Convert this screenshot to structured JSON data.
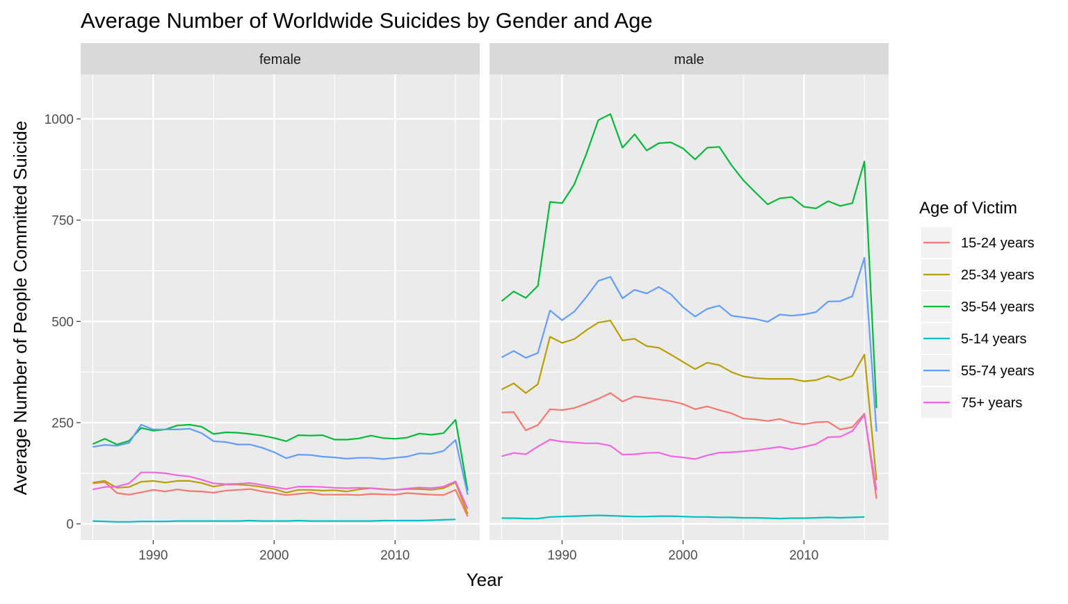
{
  "chart_data": {
    "type": "line",
    "title": "Average Number of Worldwide Suicides by Gender and Age",
    "xlabel": "Year",
    "ylabel": "Average Number of People Committed Suicide",
    "xlim": [
      1984,
      2017
    ],
    "ylim": [
      -40,
      1110
    ],
    "x_ticks": [
      1990,
      2000,
      2010
    ],
    "y_ticks": [
      0,
      250,
      500,
      750,
      1000
    ],
    "grid": true,
    "legend": {
      "title": "Age of Victim",
      "position": "right"
    },
    "x": [
      1985,
      1986,
      1987,
      1988,
      1989,
      1990,
      1991,
      1992,
      1993,
      1994,
      1995,
      1996,
      1997,
      1998,
      1999,
      2000,
      2001,
      2002,
      2003,
      2004,
      2005,
      2006,
      2007,
      2008,
      2009,
      2010,
      2011,
      2012,
      2013,
      2014,
      2015,
      2016
    ],
    "panels": [
      {
        "label": "female",
        "series": [
          {
            "name": "15-24 years",
            "color": "#F8766D",
            "values": [
              100,
              103,
              76,
              72,
              78,
              84,
              80,
              85,
              81,
              80,
              77,
              82,
              84,
              86,
              80,
              76,
              71,
              74,
              77,
              72,
              72,
              72,
              71,
              74,
              73,
              72,
              76,
              74,
              72,
              71,
              84,
              18
            ]
          },
          {
            "name": "25-34 years",
            "color": "#B79F00",
            "values": [
              102,
              106,
              89,
              91,
              104,
              106,
              102,
              106,
              106,
              101,
              92,
              97,
              97,
              95,
              91,
              86,
              77,
              84,
              84,
              82,
              83,
              80,
              85,
              88,
              86,
              84,
              86,
              86,
              84,
              88,
              102,
              25
            ]
          },
          {
            "name": "35-54 years",
            "color": "#00BA38",
            "values": [
              197,
              210,
              196,
              205,
              237,
              230,
              233,
              243,
              245,
              240,
              222,
              226,
              225,
              222,
              218,
              212,
              204,
              219,
              218,
              219,
              208,
              208,
              211,
              218,
              212,
              210,
              213,
              223,
              220,
              224,
              257,
              82
            ]
          },
          {
            "name": "5-14 years",
            "color": "#00BFC4",
            "values": [
              7,
              6,
              5,
              5,
              6,
              6,
              6,
              7,
              7,
              7,
              7,
              7,
              7,
              8,
              7,
              7,
              7,
              8,
              7,
              7,
              7,
              7,
              7,
              7,
              8,
              8,
              8,
              8,
              9,
              10,
              11,
              null
            ]
          },
          {
            "name": "55-74 years",
            "color": "#619CFF",
            "values": [
              190,
              195,
              193,
              200,
              245,
              233,
              233,
              233,
              235,
              224,
              204,
              202,
              196,
              196,
              188,
              177,
              162,
              171,
              170,
              166,
              164,
              161,
              163,
              163,
              160,
              163,
              166,
              174,
              173,
              180,
              207,
              72
            ]
          },
          {
            "name": "75+ years",
            "color": "#F564E3",
            "values": [
              85,
              91,
              92,
              100,
              127,
              127,
              125,
              120,
              117,
              109,
              100,
              98,
              99,
              101,
              96,
              91,
              86,
              92,
              92,
              91,
              89,
              88,
              89,
              88,
              85,
              84,
              87,
              90,
              88,
              92,
              105,
              37
            ]
          }
        ]
      },
      {
        "label": "male",
        "series": [
          {
            "name": "15-24 years",
            "color": "#F8766D",
            "values": [
              275,
              276,
              231,
              244,
              283,
              281,
              286,
              297,
              309,
              323,
              302,
              315,
              311,
              307,
              303,
              296,
              283,
              290,
              281,
              273,
              260,
              258,
              254,
              259,
              250,
              246,
              251,
              252,
              233,
              239,
              272,
              62
            ]
          },
          {
            "name": "25-34 years",
            "color": "#B79F00",
            "values": [
              332,
              347,
              323,
              345,
              462,
              447,
              456,
              478,
              497,
              502,
              453,
              457,
              439,
              435,
              418,
              400,
              382,
              398,
              392,
              375,
              364,
              360,
              358,
              358,
              358,
              352,
              355,
              365,
              355,
              365,
              418,
              108
            ]
          },
          {
            "name": "35-54 years",
            "color": "#00BA38",
            "values": [
              550,
              574,
              558,
              588,
              795,
              792,
              838,
              913,
              997,
              1012,
              929,
              962,
              922,
              940,
              942,
              927,
              900,
              929,
              931,
              886,
              848,
              818,
              789,
              804,
              807,
              783,
              779,
              797,
              785,
              792,
              895,
              286
            ]
          },
          {
            "name": "5-14 years",
            "color": "#00BFC4",
            "values": [
              14,
              14,
              13,
              13,
              17,
              18,
              19,
              20,
              21,
              20,
              19,
              18,
              18,
              19,
              19,
              18,
              17,
              17,
              16,
              16,
              15,
              15,
              14,
              13,
              14,
              14,
              15,
              16,
              15,
              16,
              17,
              null
            ]
          },
          {
            "name": "55-74 years",
            "color": "#619CFF",
            "values": [
              411,
              427,
              410,
              422,
              527,
              503,
              524,
              560,
              600,
              610,
              557,
              578,
              569,
              585,
              567,
              535,
              512,
              531,
              539,
              514,
              510,
              506,
              499,
              517,
              514,
              517,
              523,
              549,
              550,
              562,
              657,
              228
            ]
          },
          {
            "name": "75+ years",
            "color": "#F564E3",
            "values": [
              167,
              175,
              172,
              191,
              208,
              203,
              201,
              199,
              199,
              193,
              171,
              172,
              175,
              176,
              167,
              164,
              160,
              169,
              176,
              177,
              179,
              182,
              186,
              190,
              184,
              190,
              197,
              214,
              215,
              229,
              269,
              83
            ]
          }
        ]
      }
    ]
  }
}
